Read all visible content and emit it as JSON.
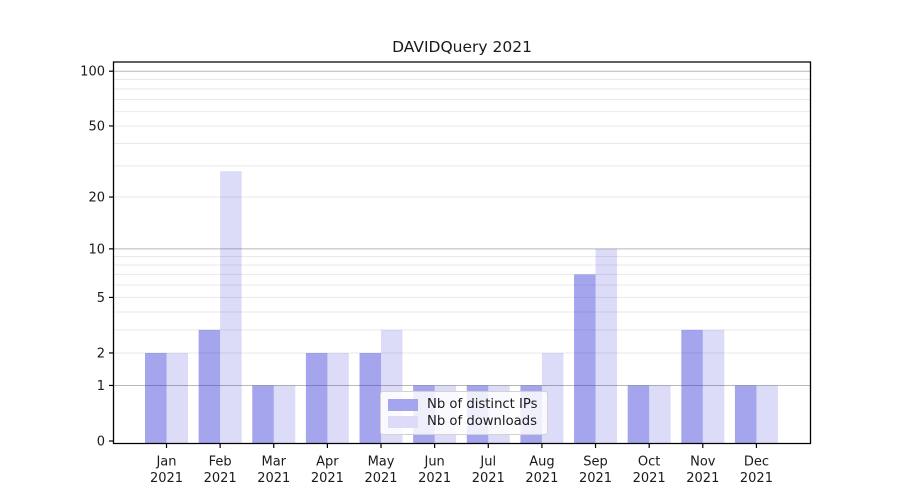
{
  "chart_data": {
    "type": "bar",
    "title": "DAVIDQuery 2021",
    "categories": [
      "Jan 2021",
      "Feb 2021",
      "Mar 2021",
      "Apr 2021",
      "May 2021",
      "Jun 2021",
      "Jul 2021",
      "Aug 2021",
      "Sep 2021",
      "Oct 2021",
      "Nov 2021",
      "Dec 2021"
    ],
    "x_tick_line1": [
      "Jan",
      "Feb",
      "Mar",
      "Apr",
      "May",
      "Jun",
      "Jul",
      "Aug",
      "Sep",
      "Oct",
      "Nov",
      "Dec"
    ],
    "x_tick_line2": "2021",
    "series": [
      {
        "name": "Nb of distinct IPs",
        "values": [
          2,
          3,
          1,
          2,
          2,
          1,
          1,
          1,
          7,
          1,
          3,
          1
        ],
        "fill": "rgba(40,40,215,0.42)",
        "solid_color": "#a5a5ef"
      },
      {
        "name": "Nb of downloads",
        "values": [
          2,
          28,
          1,
          2,
          3,
          1,
          1,
          2,
          10,
          1,
          3,
          1
        ],
        "fill": "rgba(40,40,215,0.165)",
        "solid_color": "#dcdcf9"
      }
    ],
    "y_axis": {
      "scale": "log1p",
      "tick_values": [
        0,
        1,
        2,
        5,
        10,
        20,
        50,
        100
      ],
      "tick_labels": [
        "0",
        "1",
        "2",
        "5",
        "10",
        "20",
        "50",
        "100"
      ],
      "major_grid_values": [
        1,
        10,
        100
      ],
      "minor_grid_values": [
        2,
        3,
        4,
        5,
        6,
        7,
        8,
        9,
        20,
        30,
        40,
        50,
        60,
        70,
        80,
        90
      ]
    },
    "legend": {
      "position": "lower-center"
    },
    "grid": "on"
  },
  "colors": {
    "bar_base": "#2828d7",
    "major_grid": "#b8b8b8",
    "minor_grid": "#e9e9e9",
    "spine": "#000000",
    "text": "#1a1a1a"
  }
}
